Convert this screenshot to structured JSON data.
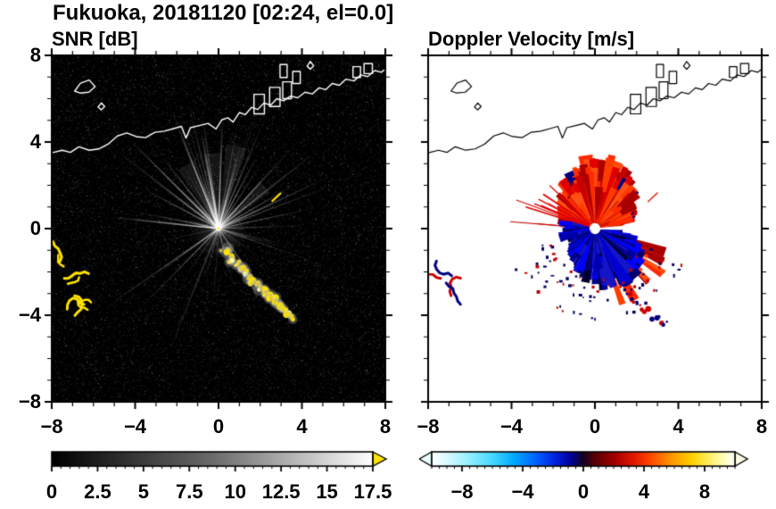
{
  "title": "Fukuoka, 20181120 [02:24, el=0.0]",
  "panels": {
    "snr": {
      "subtitle": "SNR [dB]",
      "x_tick_labels": [
        "−8",
        "−4",
        "0",
        "4",
        "8"
      ],
      "y_tick_labels": [
        "8",
        "4",
        "0",
        "−4",
        "−8"
      ]
    },
    "doppler": {
      "subtitle": "Doppler Velocity [m/s]",
      "x_tick_labels": [
        "−8",
        "−4",
        "0",
        "4",
        "8"
      ]
    }
  },
  "colorbars": {
    "snr": {
      "tick_labels": [
        "0",
        "2.5",
        "5",
        "7.5",
        "10",
        "12.5",
        "15",
        "17.5"
      ],
      "min": 0,
      "max": 17.5,
      "stops": [
        [
          0,
          "#000000"
        ],
        [
          0.5,
          "#6a6a6a"
        ],
        [
          1,
          "#ffffff"
        ]
      ],
      "overflow_arrow_color": "#ffe400"
    },
    "doppler": {
      "tick_labels": [
        "−8",
        "−4",
        "0",
        "4",
        "8"
      ],
      "min": -10,
      "max": 10,
      "stops": [
        [
          0,
          "#ffffff"
        ],
        [
          0.05,
          "#d8faff"
        ],
        [
          0.12,
          "#96f0ff"
        ],
        [
          0.2,
          "#46d8ff"
        ],
        [
          0.27,
          "#00aaff"
        ],
        [
          0.34,
          "#0064ff"
        ],
        [
          0.41,
          "#0020dc"
        ],
        [
          0.46,
          "#000096"
        ],
        [
          0.5,
          "#140020"
        ],
        [
          0.54,
          "#5a0000"
        ],
        [
          0.6,
          "#a00000"
        ],
        [
          0.66,
          "#dc1400"
        ],
        [
          0.72,
          "#ff4600"
        ],
        [
          0.79,
          "#ff9600"
        ],
        [
          0.86,
          "#ffd200"
        ],
        [
          0.92,
          "#fff06e"
        ],
        [
          0.97,
          "#ffffc8"
        ],
        [
          1,
          "#ffffff"
        ]
      ],
      "left_arrow_color": "#eaffff",
      "right_arrow_color": "#ffffe8"
    }
  },
  "coastline": {
    "main": [
      [
        -8,
        3.5
      ],
      [
        -7.5,
        3.62
      ],
      [
        -7.1,
        3.52
      ],
      [
        -6.7,
        3.78
      ],
      [
        -6.2,
        3.62
      ],
      [
        -5.75,
        3.68
      ],
      [
        -5.3,
        3.9
      ],
      [
        -4.85,
        4.28
      ],
      [
        -4.4,
        4.42
      ],
      [
        -3.95,
        4.25
      ],
      [
        -3.5,
        4.2
      ],
      [
        -3.05,
        4.45
      ],
      [
        -2.6,
        4.5
      ],
      [
        -2.15,
        4.62
      ],
      [
        -1.78,
        4.72
      ],
      [
        -1.56,
        4.18
      ],
      [
        -1.35,
        4.66
      ],
      [
        -0.92,
        4.76
      ],
      [
        -0.5,
        4.86
      ],
      [
        -0.12,
        4.6
      ],
      [
        0.15,
        5.02
      ],
      [
        0.45,
        5.12
      ],
      [
        0.7,
        4.92
      ],
      [
        1,
        5.36
      ],
      [
        1.28,
        5.26
      ],
      [
        1.58,
        5.6
      ],
      [
        1.88,
        5.5
      ],
      [
        2.18,
        5.8
      ],
      [
        2.5,
        5.7
      ],
      [
        2.8,
        6.0
      ],
      [
        3.12,
        5.9
      ],
      [
        3.45,
        6.12
      ],
      [
        3.8,
        6.04
      ],
      [
        4.15,
        6.3
      ],
      [
        4.5,
        6.22
      ],
      [
        4.82,
        6.5
      ],
      [
        5.15,
        6.42
      ],
      [
        5.45,
        6.7
      ],
      [
        5.8,
        6.62
      ],
      [
        6.1,
        6.9
      ],
      [
        6.5,
        6.82
      ],
      [
        6.82,
        7.1
      ],
      [
        7.15,
        7.02
      ],
      [
        7.5,
        7.3
      ],
      [
        7.8,
        7.22
      ],
      [
        8,
        7.36
      ]
    ],
    "islands": [
      [
        [
          -6.9,
          6.35
        ],
        [
          -6.62,
          6.72
        ],
        [
          -6.2,
          6.86
        ],
        [
          -5.92,
          6.56
        ],
        [
          -6.22,
          6.3
        ],
        [
          -6.64,
          6.26
        ]
      ],
      [
        [
          -5.78,
          5.62
        ],
        [
          -5.62,
          5.8
        ],
        [
          -5.46,
          5.64
        ],
        [
          -5.62,
          5.48
        ]
      ],
      [
        [
          4.25,
          7.5
        ],
        [
          4.4,
          7.72
        ],
        [
          4.56,
          7.52
        ],
        [
          4.4,
          7.36
        ]
      ]
    ],
    "blocks": [
      [
        1.7,
        6.2,
        0.5,
        0.9
      ],
      [
        2.45,
        6.52,
        0.5,
        0.88
      ],
      [
        3.08,
        6.78,
        0.42,
        0.78
      ],
      [
        2.95,
        7.58,
        0.34,
        0.6
      ],
      [
        3.56,
        7.26,
        0.36,
        0.56
      ],
      [
        6.45,
        7.48,
        0.36,
        0.5
      ],
      [
        6.98,
        7.62,
        0.4,
        0.46
      ]
    ]
  },
  "chart_data": [
    {
      "type": "heatmap",
      "title": "SNR [dB]",
      "xlim": [
        -8,
        8
      ],
      "ylim": [
        -8,
        8
      ],
      "units": "dB",
      "background_color": "#000000",
      "radar_center": [
        0,
        0
      ],
      "colorbar": {
        "min": 0,
        "max": 17.5,
        "ticks": [
          0,
          2.5,
          5,
          7.5,
          10,
          12.5,
          15,
          17.5
        ],
        "colormap": "grayscale",
        "overflow_color": "#ffe400"
      },
      "features": {
        "noise_floor": "speckled low-SNR noise over full domain",
        "beam_rays": {
          "count": 75,
          "max_radius": 7
        },
        "strong_echo_arc": [
          [
            0.2,
            -0.9
          ],
          [
            0.6,
            -1.35
          ],
          [
            1.0,
            -1.8
          ],
          [
            1.45,
            -2.25
          ],
          [
            1.9,
            -2.7
          ],
          [
            2.35,
            -3.05
          ],
          [
            2.8,
            -3.45
          ],
          [
            3.2,
            -3.8
          ],
          [
            3.55,
            -4.2
          ]
        ],
        "strong_echo_segment_ne": [
          [
            2.55,
            1.25
          ],
          [
            3.0,
            1.65
          ]
        ],
        "west_patches": [
          [
            -7.6,
            -1.5
          ],
          [
            -7.4,
            -2.3
          ],
          [
            -6.9,
            -3.1
          ],
          [
            -6.45,
            -3.5
          ]
        ]
      }
    },
    {
      "type": "heatmap",
      "title": "Doppler Velocity [m/s]",
      "xlim": [
        -8,
        8
      ],
      "ylim": [
        -8,
        8
      ],
      "units": "m/s",
      "background_color": "#ffffff",
      "radar_center": [
        0,
        0
      ],
      "colorbar": {
        "min": -10,
        "max": 10,
        "ticks": [
          -8,
          -4,
          0,
          4,
          8
        ],
        "colormap": "cyan-blue-black-red-yellow-white"
      },
      "features": {
        "positive_velocity_fan_deg": [
          10,
          175
        ],
        "negative_velocity_fan_deg": [
          186,
          352
        ],
        "fan_max_radius": 4.2,
        "west_patches": [
          [
            -7.6,
            -1.5
          ],
          [
            -7.4,
            -2.3
          ],
          [
            -6.9,
            -3.1
          ],
          [
            -6.45,
            -3.5
          ]
        ],
        "se_patches": [
          [
            1.6,
            -3.1
          ],
          [
            2.0,
            -3.45
          ],
          [
            2.4,
            -3.8
          ],
          [
            2.9,
            -4.1
          ],
          [
            3.3,
            -4.45
          ]
        ],
        "ne_segment": [
          [
            2.55,
            1.25
          ],
          [
            3.0,
            1.65
          ]
        ]
      }
    }
  ]
}
